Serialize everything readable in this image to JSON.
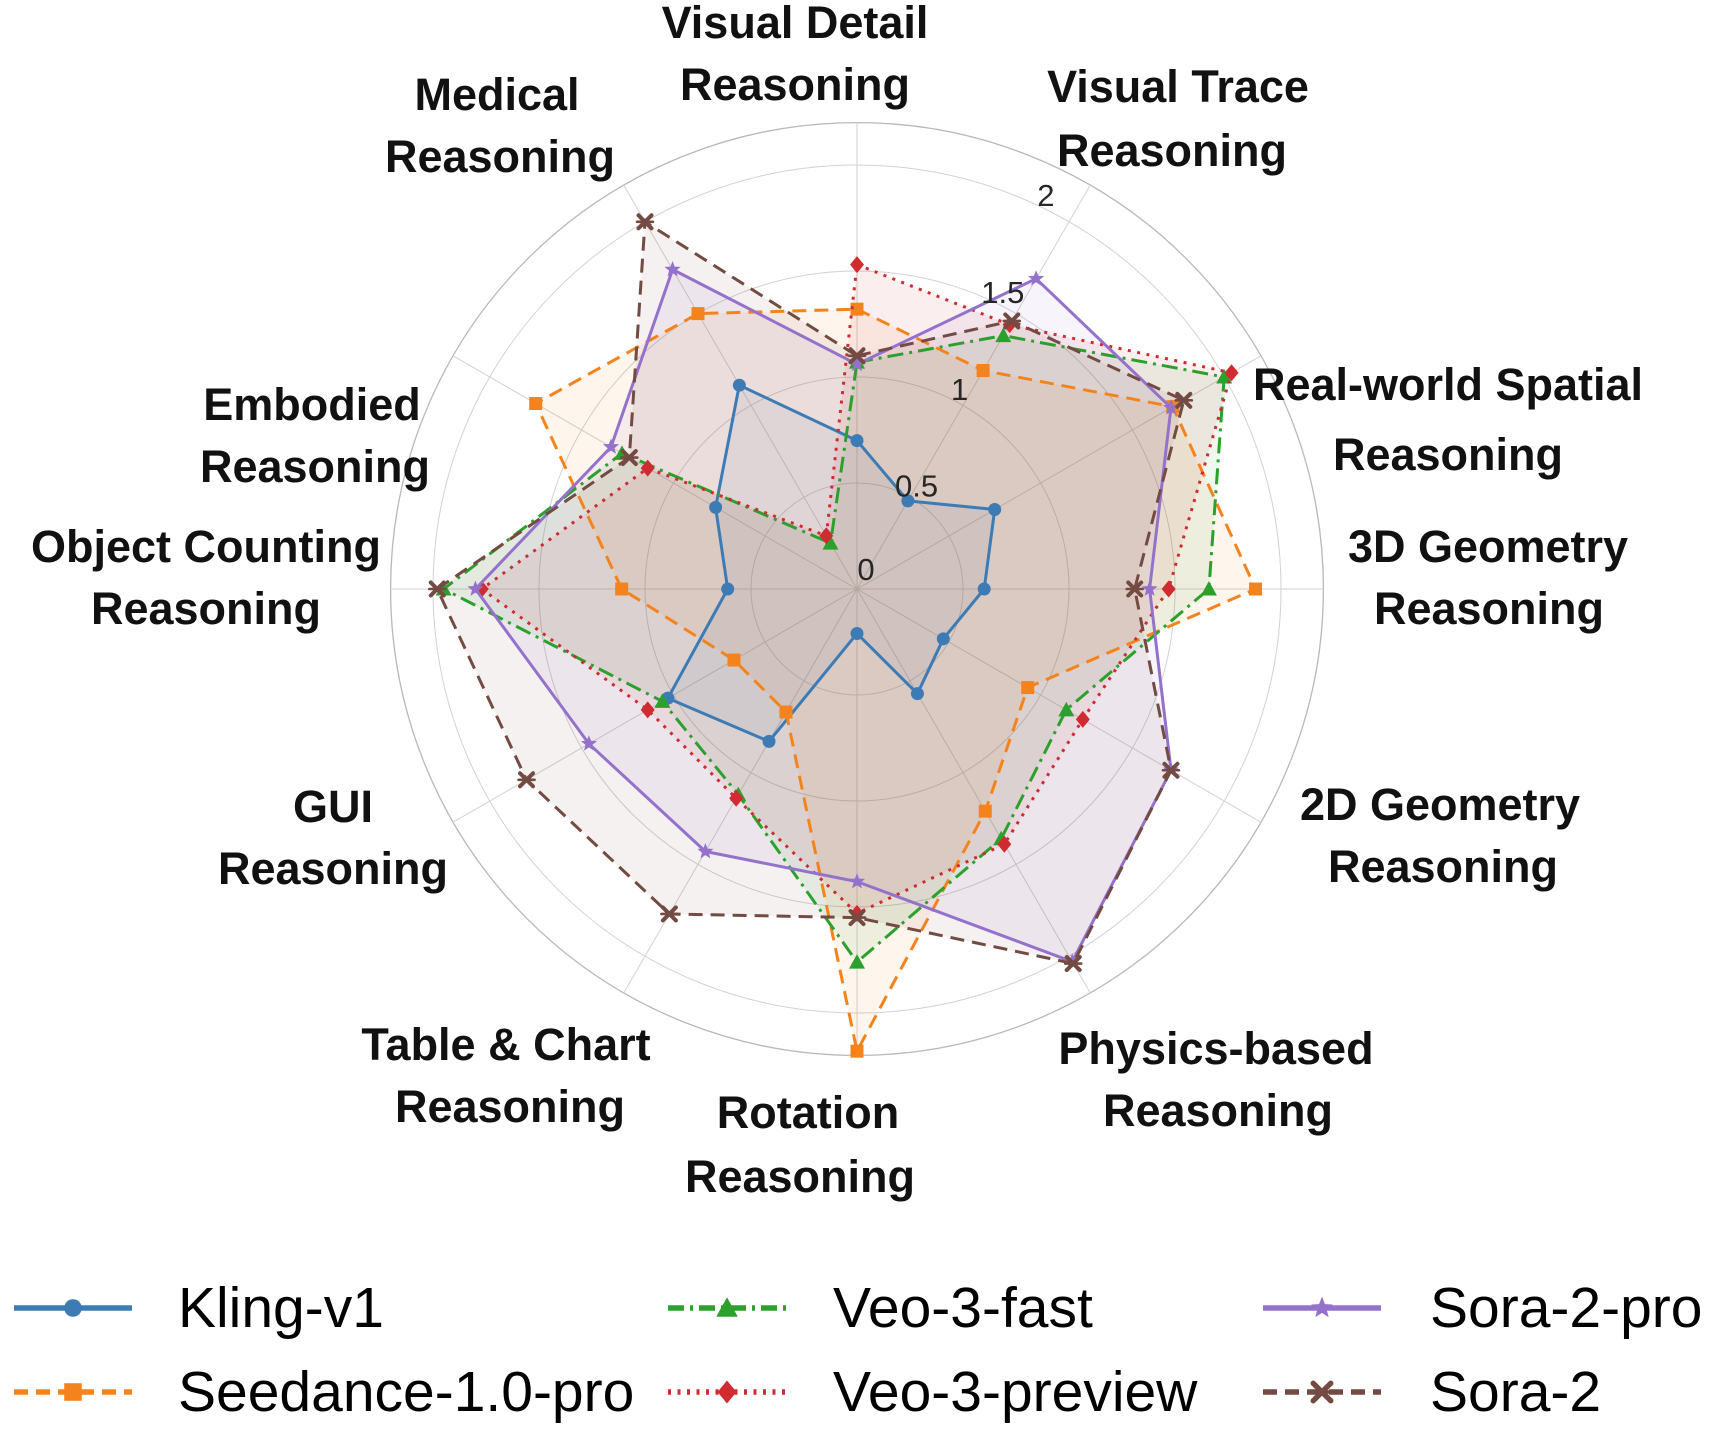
{
  "chart_data": {
    "type": "radar",
    "title": "",
    "categories": [
      {
        "id": "visual-detail",
        "lines": [
          "Visual Detail",
          "Reasoning"
        ]
      },
      {
        "id": "visual-trace",
        "lines": [
          "Visual Trace",
          "Reasoning"
        ]
      },
      {
        "id": "real-world-spatial",
        "lines": [
          "Real-world Spatial",
          "Reasoning"
        ]
      },
      {
        "id": "3d-geometry",
        "lines": [
          "3D Geometry",
          "Reasoning"
        ]
      },
      {
        "id": "2d-geometry",
        "lines": [
          "2D Geometry",
          "Reasoning"
        ]
      },
      {
        "id": "physics-based",
        "lines": [
          "Physics-based",
          "Reasoning"
        ]
      },
      {
        "id": "rotation",
        "lines": [
          "Rotation",
          "Reasoning"
        ]
      },
      {
        "id": "table-chart",
        "lines": [
          "Table & Chart",
          "Reasoning"
        ]
      },
      {
        "id": "gui",
        "lines": [
          "GUI",
          "Reasoning"
        ]
      },
      {
        "id": "object-counting",
        "lines": [
          "Object Counting",
          "Reasoning"
        ]
      },
      {
        "id": "embodied",
        "lines": [
          "Embodied",
          "Reasoning"
        ]
      },
      {
        "id": "medical",
        "lines": [
          "Medical",
          "Reasoning"
        ]
      }
    ],
    "r_ticks": [
      "0",
      "0.5",
      "1",
      "1.5",
      "2"
    ],
    "r_tick_values": [
      0,
      0.5,
      1,
      1.5,
      2
    ],
    "r_max": 2.2,
    "grid": true,
    "legend_position": "bottom",
    "series": [
      {
        "name": "Kling-v1",
        "color": "#3d7bb5",
        "line": "solid",
        "marker": "circle",
        "values": [
          0.7,
          0.48,
          0.75,
          0.6,
          0.47,
          0.57,
          0.21,
          0.83,
          1.03,
          0.61,
          0.77,
          1.11
        ]
      },
      {
        "name": "Seedance-1.0-pro",
        "color": "#f5831c",
        "line": "dashed",
        "marker": "square",
        "values": [
          1.32,
          1.19,
          1.72,
          1.88,
          0.93,
          1.21,
          2.18,
          0.67,
          0.67,
          1.11,
          1.75,
          1.5
        ]
      },
      {
        "name": "Veo-3-fast",
        "color": "#2ca02c",
        "line": "dashdot",
        "marker": "triangle",
        "values": [
          1.07,
          1.38,
          2.0,
          1.66,
          1.14,
          1.36,
          1.76,
          1.12,
          1.06,
          1.95,
          1.28,
          0.25
        ]
      },
      {
        "name": "Veo-3-preview",
        "color": "#cf2b30",
        "line": "dotted",
        "marker": "diamond",
        "values": [
          1.53,
          1.44,
          2.04,
          1.47,
          1.23,
          1.39,
          1.53,
          1.14,
          1.14,
          1.77,
          1.14,
          0.29
        ]
      },
      {
        "name": "Sora-2-pro",
        "color": "#9472cc",
        "line": "solid",
        "marker": "star",
        "values": [
          1.06,
          1.69,
          1.71,
          1.38,
          1.71,
          2.03,
          1.38,
          1.43,
          1.46,
          1.8,
          1.34,
          1.74
        ]
      },
      {
        "name": "Sora-2",
        "color": "#744b42",
        "line": "dashed",
        "marker": "xstar",
        "values": [
          1.1,
          1.46,
          1.78,
          1.31,
          1.71,
          2.04,
          1.55,
          1.77,
          1.8,
          1.98,
          1.24,
          2.0
        ]
      }
    ]
  }
}
